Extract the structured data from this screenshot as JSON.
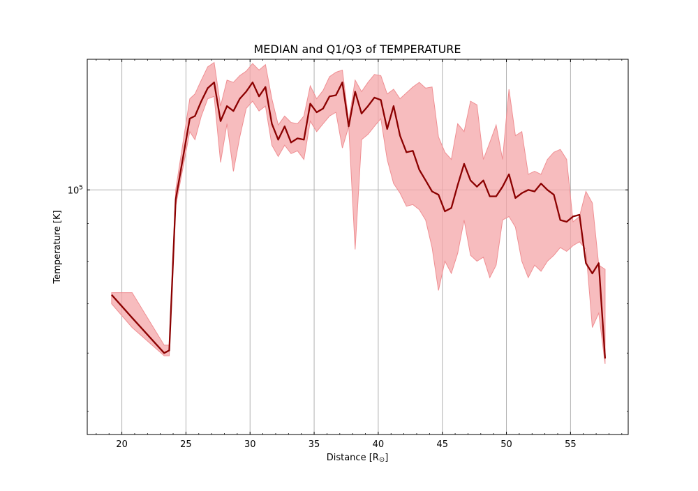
{
  "chart_data": {
    "type": "line",
    "title": "MEDIAN and Q1/Q3 of TEMPERATURE",
    "xlabel": "Distance [R",
    "xlabel_sub": "⊙",
    "xlabel_close": "]",
    "ylabel": "Temperature [K]",
    "y_scale": "log",
    "xlim": [
      17.3,
      59.5
    ],
    "ylim": [
      46500,
      150500
    ],
    "grid": true,
    "x_ticks": [
      20,
      25,
      30,
      35,
      40,
      45,
      50,
      55
    ],
    "x_tick_labels": [
      "20",
      "25",
      "30",
      "35",
      "40",
      "45",
      "50",
      "55"
    ],
    "y_major_ticks": [
      100000
    ],
    "y_major_tick_label_base": "10",
    "y_major_tick_label_exp": "5",
    "y_minor_ticks": [
      50000,
      60000,
      70000,
      80000,
      90000,
      200000
    ],
    "colors": {
      "median": "#8b0000",
      "band": "#f4a6a8",
      "grid": "#b0b0b0"
    },
    "x": [
      19.2,
      20.8,
      23.3,
      23.7,
      24.2,
      25.3,
      25.7,
      26.2,
      26.7,
      27.2,
      27.7,
      28.2,
      28.7,
      29.2,
      29.7,
      30.2,
      30.7,
      31.2,
      31.7,
      32.2,
      32.7,
      33.2,
      33.7,
      34.2,
      34.7,
      35.2,
      35.7,
      36.2,
      36.7,
      37.2,
      37.7,
      38.2,
      38.7,
      39.2,
      39.7,
      40.2,
      40.7,
      41.2,
      41.7,
      42.2,
      42.7,
      43.2,
      43.7,
      44.2,
      44.7,
      45.2,
      45.7,
      46.2,
      46.7,
      47.2,
      47.7,
      48.2,
      48.7,
      49.2,
      49.7,
      50.2,
      50.7,
      51.2,
      51.7,
      52.2,
      52.7,
      53.2,
      53.7,
      54.2,
      54.7,
      55.2,
      55.7,
      56.2,
      56.7,
      57.2,
      57.7
    ],
    "median": [
      72000,
      67000,
      60000,
      60500,
      97000,
      125000,
      126000,
      132000,
      137500,
      140000,
      124000,
      130000,
      128000,
      133000,
      136000,
      140000,
      134000,
      138000,
      123000,
      117000,
      122000,
      116000,
      117500,
      117000,
      131000,
      127500,
      129000,
      134000,
      134500,
      140000,
      122000,
      136000,
      127000,
      130000,
      133500,
      132500,
      121000,
      130000,
      118500,
      112500,
      113000,
      106500,
      103000,
      99500,
      98500,
      93500,
      94500,
      101500,
      108500,
      103000,
      101000,
      103000,
      98000,
      98000,
      101000,
      105000,
      97500,
      99000,
      100000,
      99500,
      102000,
      100000,
      98500,
      91000,
      90500,
      92000,
      92500,
      79500,
      77000,
      79500,
      59000
    ],
    "q1": [
      70000,
      65000,
      59500,
      59500,
      95000,
      120000,
      117000,
      126000,
      133000,
      134000,
      109000,
      123000,
      106000,
      118000,
      129000,
      132000,
      128000,
      130000,
      115000,
      111000,
      115000,
      112000,
      113000,
      110000,
      124000,
      120000,
      123000,
      126000,
      127500,
      114000,
      122000,
      83000,
      117000,
      119000,
      122000,
      125000,
      110000,
      102000,
      99000,
      95000,
      95500,
      94000,
      91000,
      83500,
      73000,
      80000,
      77000,
      82000,
      91000,
      81500,
      80000,
      81000,
      76000,
      79000,
      91000,
      92000,
      89000,
      80000,
      76000,
      79000,
      77500,
      80000,
      81500,
      83500,
      82500,
      84000,
      85000,
      83000,
      65000,
      68000,
      58000
    ],
    "q3": [
      72500,
      72500,
      61500,
      61500,
      100000,
      133000,
      135000,
      141000,
      147000,
      149000,
      130000,
      141000,
      140000,
      143000,
      145000,
      148500,
      145500,
      148000,
      133000,
      122500,
      126000,
      123500,
      123000,
      126000,
      138500,
      133000,
      136500,
      142500,
      144500,
      145500,
      124000,
      141000,
      136000,
      140000,
      143500,
      143000,
      135000,
      137000,
      133000,
      135500,
      138000,
      140000,
      137500,
      138000,
      118000,
      112500,
      110000,
      123000,
      120000,
      132000,
      130500,
      110000,
      116000,
      122500,
      110000,
      137000,
      118500,
      120000,
      105000,
      106000,
      105000,
      110000,
      112500,
      113500,
      110000,
      90500,
      92000,
      99500,
      96000,
      79000,
      78000
    ]
  }
}
